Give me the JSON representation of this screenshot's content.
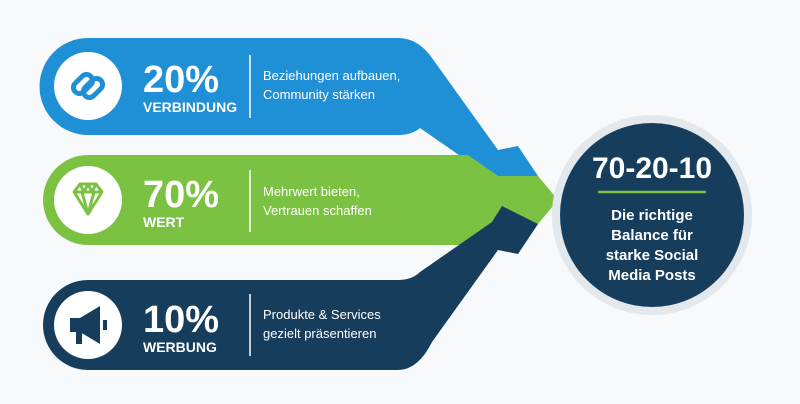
{
  "items": [
    {
      "percent": "20%",
      "label": "VERBINDUNG",
      "description": [
        "Beziehungen aufbauen,",
        "Community stärken"
      ]
    },
    {
      "percent": "70%",
      "label": "WERT",
      "description": [
        "Mehrwert bieten,",
        "Vertrauen schaffen"
      ]
    },
    {
      "percent": "10%",
      "label": "WERBUNG",
      "description": [
        "Produkte & Services",
        "gezielt präsentieren"
      ]
    }
  ],
  "summary": {
    "title": "70-20-10",
    "text": [
      "Die richtige",
      "Balance für",
      "starke Social",
      "Media Posts"
    ]
  }
}
